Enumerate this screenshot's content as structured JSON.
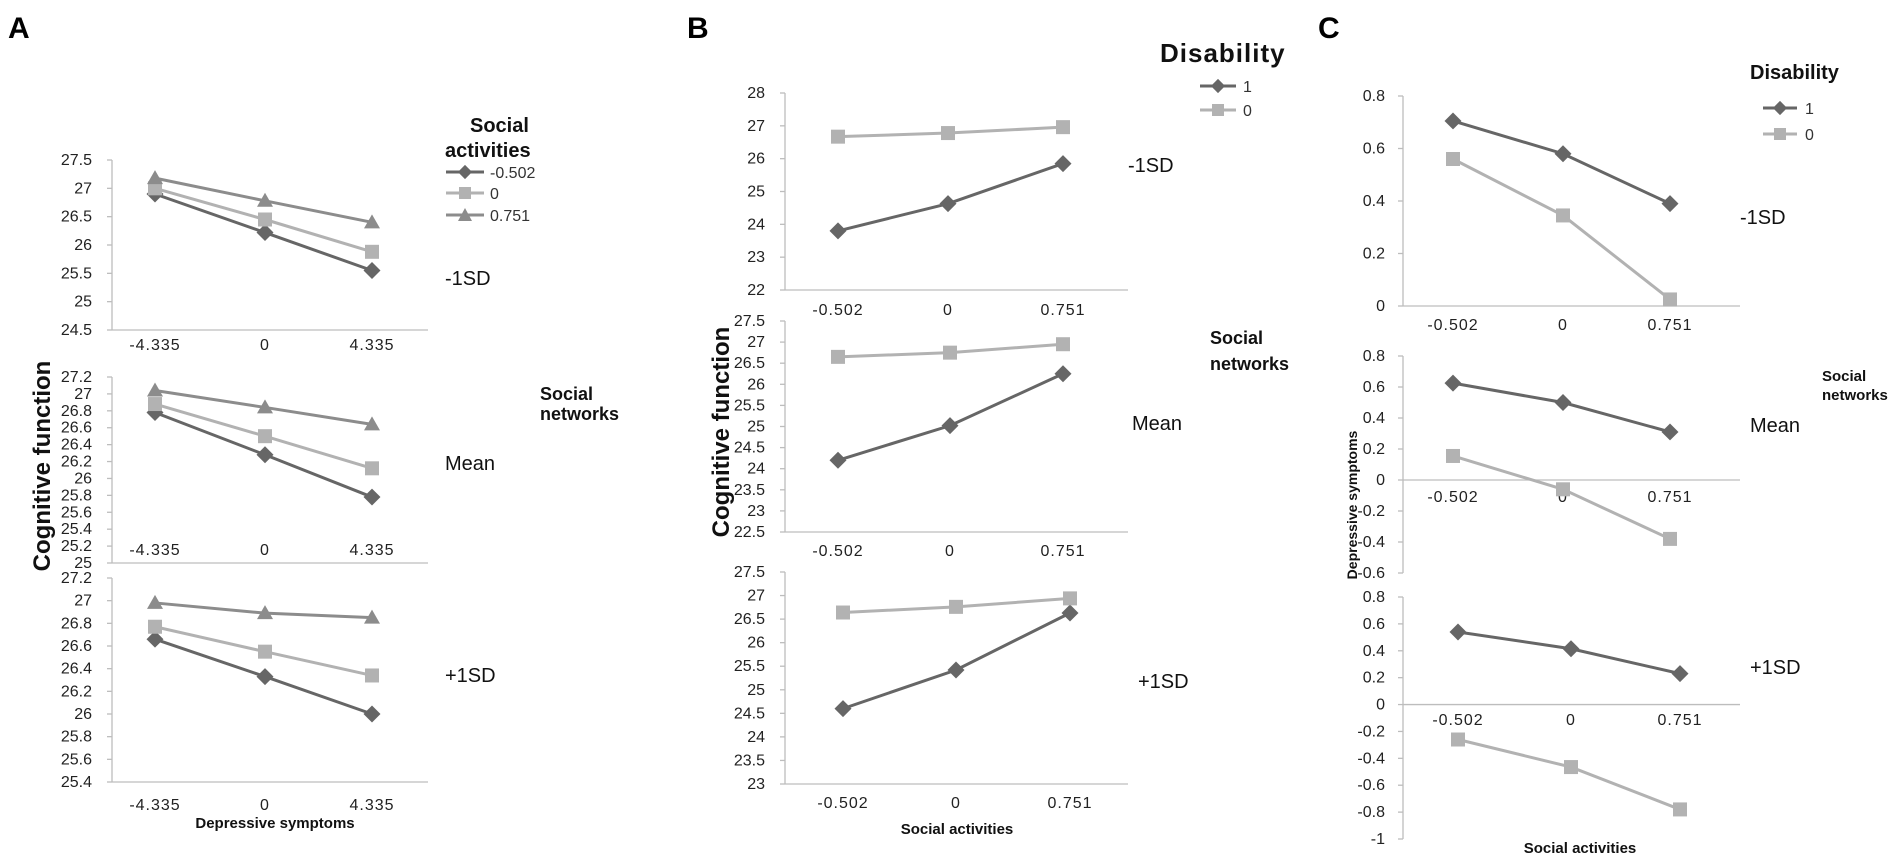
{
  "panels": {
    "A": {
      "letter": "A",
      "legend": {
        "title_lines": [
          "Social",
          "activities"
        ],
        "items": [
          "-0.502",
          "0",
          "0.751"
        ]
      },
      "side_label": [
        "Social",
        "networks"
      ],
      "ylabel": "Cognitive function",
      "xlabel": "Depressive symptoms"
    },
    "B": {
      "letter": "B",
      "legend": {
        "title": "Disability",
        "items": [
          "1",
          "0"
        ]
      },
      "side_label": [
        "Social",
        "networks"
      ],
      "ylabel": "Cognitive function",
      "xlabel": "Social activities"
    },
    "C": {
      "letter": "C",
      "legend": {
        "title": "Disability",
        "items": [
          "1",
          "0"
        ]
      },
      "side_label": [
        "Social",
        "networks"
      ],
      "ylabel": "Depressive symptoms",
      "xlabel": "Social activities"
    }
  },
  "colors": {
    "dark": "#666666",
    "light": "#b2b2b2",
    "mid": "#8c8c8c",
    "axis": "#bdbdbd"
  },
  "chart_data": [
    {
      "panel": "A",
      "type": "line",
      "condition": "-1SD",
      "categories": [
        "-4.335",
        "0",
        "4.335"
      ],
      "yticks": [
        "24.5",
        "25",
        "25.5",
        "26",
        "26.5",
        "27",
        "27.5"
      ],
      "ylim": [
        24.5,
        27.5
      ],
      "series": [
        {
          "name": "-0.502",
          "marker": "diamond",
          "color": "dark",
          "values": [
            26.9,
            26.22,
            25.55
          ]
        },
        {
          "name": "0",
          "marker": "square",
          "color": "light",
          "values": [
            27.0,
            26.45,
            25.88
          ]
        },
        {
          "name": "0.751",
          "marker": "triangle",
          "color": "mid",
          "values": [
            27.18,
            26.78,
            26.4
          ]
        }
      ]
    },
    {
      "panel": "A",
      "type": "line",
      "condition": "Mean",
      "categories": [
        "-4.335",
        "0",
        "4.335"
      ],
      "yticks": [
        "25",
        "25.2",
        "25.4",
        "25.6",
        "25.8",
        "26",
        "26.2",
        "26.4",
        "26.6",
        "26.8",
        "27",
        "27.2"
      ],
      "ylim": [
        25,
        27.2
      ],
      "series": [
        {
          "name": "-0.502",
          "marker": "diamond",
          "color": "dark",
          "values": [
            26.78,
            26.28,
            25.78
          ]
        },
        {
          "name": "0",
          "marker": "square",
          "color": "light",
          "values": [
            26.88,
            26.5,
            26.12
          ]
        },
        {
          "name": "0.751",
          "marker": "triangle",
          "color": "mid",
          "values": [
            27.04,
            26.84,
            26.64
          ]
        }
      ]
    },
    {
      "panel": "A",
      "type": "line",
      "condition": "+1SD",
      "categories": [
        "-4.335",
        "0",
        "4.335"
      ],
      "yticks": [
        "25.4",
        "25.6",
        "25.8",
        "26",
        "26.2",
        "26.4",
        "26.6",
        "26.8",
        "27",
        "27.2"
      ],
      "ylim": [
        25.4,
        27.2
      ],
      "series": [
        {
          "name": "-0.502",
          "marker": "diamond",
          "color": "dark",
          "values": [
            26.66,
            26.33,
            26.0
          ]
        },
        {
          "name": "0",
          "marker": "square",
          "color": "light",
          "values": [
            26.77,
            26.55,
            26.34
          ]
        },
        {
          "name": "0.751",
          "marker": "triangle",
          "color": "mid",
          "values": [
            26.98,
            26.89,
            26.85
          ]
        }
      ]
    },
    {
      "panel": "B",
      "type": "line",
      "condition": "-1SD",
      "categories": [
        "-0.502",
        "0",
        "0.751"
      ],
      "yticks": [
        "22",
        "23",
        "24",
        "25",
        "26",
        "27",
        "28"
      ],
      "ylim": [
        22,
        28
      ],
      "series": [
        {
          "name": "1",
          "marker": "diamond",
          "color": "dark",
          "values": [
            23.8,
            24.63,
            25.85
          ]
        },
        {
          "name": "0",
          "marker": "square",
          "color": "light",
          "values": [
            26.67,
            26.78,
            26.96
          ]
        }
      ]
    },
    {
      "panel": "B",
      "type": "line",
      "condition": "Mean",
      "categories": [
        "-0.502",
        "0",
        "0.751"
      ],
      "yticks": [
        "22.5",
        "23",
        "23.5",
        "24",
        "24.5",
        "25",
        "25.5",
        "26",
        "26.5",
        "27",
        "27.5"
      ],
      "ylim": [
        22.5,
        27.5
      ],
      "series": [
        {
          "name": "1",
          "marker": "diamond",
          "color": "dark",
          "values": [
            24.2,
            25.02,
            26.25
          ]
        },
        {
          "name": "0",
          "marker": "square",
          "color": "light",
          "values": [
            26.65,
            26.75,
            26.95
          ]
        }
      ]
    },
    {
      "panel": "B",
      "type": "line",
      "condition": "+1SD",
      "categories": [
        "-0.502",
        "0",
        "0.751"
      ],
      "yticks": [
        "23",
        "23.5",
        "24",
        "24.5",
        "25",
        "25.5",
        "26",
        "26.5",
        "27",
        "27.5"
      ],
      "ylim": [
        23,
        27.5
      ],
      "series": [
        {
          "name": "1",
          "marker": "diamond",
          "color": "dark",
          "values": [
            24.6,
            25.42,
            26.63
          ]
        },
        {
          "name": "0",
          "marker": "square",
          "color": "light",
          "values": [
            26.64,
            26.76,
            26.94
          ]
        }
      ]
    },
    {
      "panel": "C",
      "type": "line",
      "condition": "-1SD",
      "categories": [
        "-0.502",
        "0",
        "0.751"
      ],
      "yticks": [
        "0",
        "0.2",
        "0.4",
        "0.6",
        "0.8"
      ],
      "ylim": [
        0,
        0.8
      ],
      "series": [
        {
          "name": "1",
          "marker": "diamond",
          "color": "dark",
          "values": [
            0.705,
            0.58,
            0.39
          ]
        },
        {
          "name": "0",
          "marker": "square",
          "color": "light",
          "values": [
            0.56,
            0.345,
            0.025
          ]
        }
      ]
    },
    {
      "panel": "C",
      "type": "line",
      "condition": "Mean",
      "categories": [
        "-0.502",
        "0",
        "0.751"
      ],
      "yticks": [
        "-0.6",
        "-0.4",
        "-0.2",
        "0",
        "0.2",
        "0.4",
        "0.6",
        "0.8"
      ],
      "ylim": [
        -0.6,
        0.8
      ],
      "series": [
        {
          "name": "1",
          "marker": "diamond",
          "color": "dark",
          "values": [
            0.625,
            0.5,
            0.31
          ]
        },
        {
          "name": "0",
          "marker": "square",
          "color": "light",
          "values": [
            0.155,
            -0.06,
            -0.38
          ]
        }
      ]
    },
    {
      "panel": "C",
      "type": "line",
      "condition": "+1SD",
      "categories": [
        "-0.502",
        "0",
        "0.751"
      ],
      "yticks": [
        "-1",
        "-0.8",
        "-0.6",
        "-0.4",
        "-0.2",
        "0",
        "0.2",
        "0.4",
        "0.6",
        "0.8"
      ],
      "ylim": [
        -1,
        0.8
      ],
      "series": [
        {
          "name": "1",
          "marker": "diamond",
          "color": "dark",
          "values": [
            0.54,
            0.415,
            0.23
          ]
        },
        {
          "name": "0",
          "marker": "square",
          "color": "light",
          "values": [
            -0.26,
            -0.465,
            -0.78
          ]
        }
      ]
    }
  ]
}
